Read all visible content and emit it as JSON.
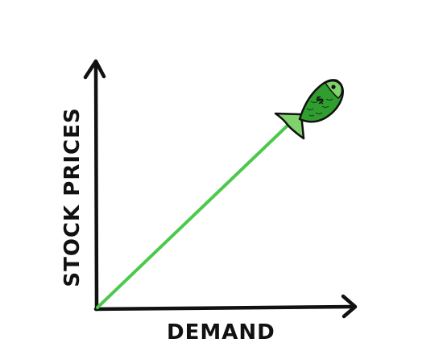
{
  "diagram": {
    "x_axis_label": "DEMAND",
    "y_axis_label": "STOCK PRICES",
    "trend": "rising",
    "line_color": "#4cc94c",
    "fish_body_color": "#2f9e2f",
    "fish_fin_color": "#7fd36a",
    "fish_symbol": "$"
  }
}
